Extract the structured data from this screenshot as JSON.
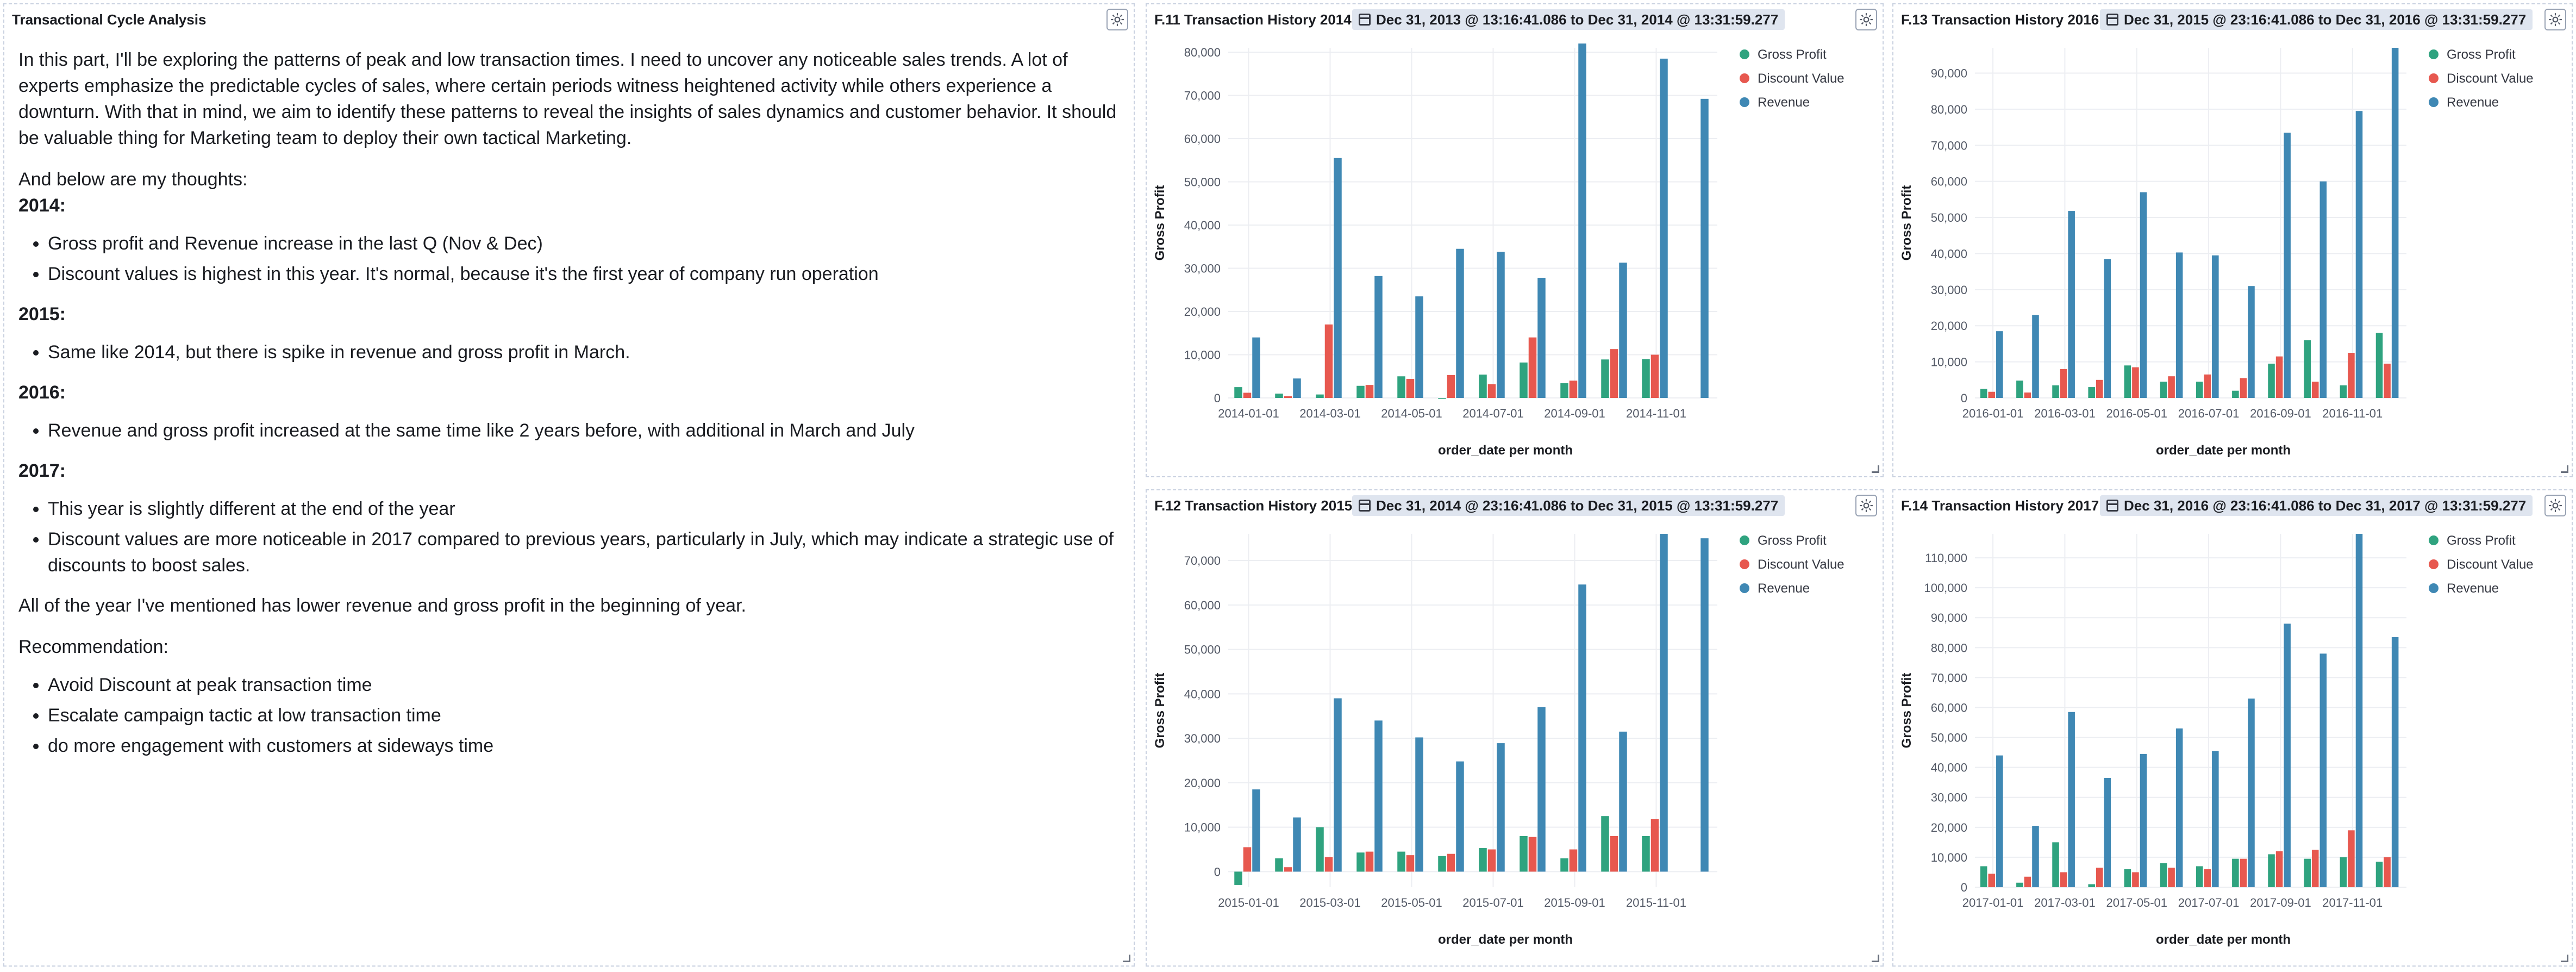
{
  "text_panel": {
    "title": "Transactional Cycle Analysis",
    "intro": "In this part, I'll be exploring the patterns of peak and low transaction times. I need to uncover any noticeable sales trends. A lot of experts emphasize the predictable cycles of sales, where certain periods witness heightened activity while others experience a downturn. With that in mind, we aim to identify these patterns to reveal the insights of sales dynamics and customer behavior. It should be valuable thing for Marketing team to deploy their own tactical Marketing.",
    "thoughts_label": "And below are my thoughts:",
    "sections": [
      {
        "heading": "2014:",
        "bullets": [
          "Gross profit and Revenue increase in the last Q (Nov & Dec)",
          "Discount values is highest in this year. It's normal, because it's the first year of company run operation"
        ]
      },
      {
        "heading": "2015:",
        "bullets": [
          "Same like 2014, but there is spike in revenue and gross profit in March."
        ]
      },
      {
        "heading": "2016:",
        "bullets": [
          "Revenue and gross profit increased at the same time like 2 years before, with additional in March and July"
        ]
      },
      {
        "heading": "2017:",
        "bullets": [
          "This year is slightly different at the end of the year",
          "Discount values are more noticeable in 2017 compared to previous years, particularly in July, which may indicate a strategic use of discounts to boost sales."
        ]
      }
    ],
    "closing": "All of the year I've mentioned has lower revenue and gross profit in the beginning of year.",
    "recommendation_label": "Recommendation:",
    "recommendations": [
      "Avoid Discount at peak transaction time",
      "Escalate campaign tactic at low transaction time",
      "do more engagement with customers at sideways time"
    ]
  },
  "legend": {
    "gross_profit": "Gross Profit",
    "discount_value": "Discount Value",
    "revenue": "Revenue"
  },
  "colors": {
    "gross_profit": "#2fa37f",
    "discount_value": "#e7584f",
    "revenue": "#3f88b4",
    "grid": "#eceef2",
    "axis_text": "#535966"
  },
  "chart_data": [
    {
      "id": "f11",
      "type": "bar",
      "title": "F.11 Transaction History 2014",
      "time_range": "Dec 31, 2013 @ 13:16:41.086 to Dec 31, 2014 @ 13:31:59.277",
      "xlabel": "order_date per month",
      "ylabel": "Gross Profit",
      "ylim": [
        0,
        81000
      ],
      "yticks": [
        0,
        10000,
        20000,
        30000,
        40000,
        50000,
        60000,
        70000,
        80000
      ],
      "categories": [
        "2014-01",
        "2014-02",
        "2014-03",
        "2014-04",
        "2014-05",
        "2014-06",
        "2014-07",
        "2014-08",
        "2014-09",
        "2014-10",
        "2014-11",
        "2014-12"
      ],
      "xtick_labels": [
        "2014-01-01",
        "2014-03-01",
        "2014-05-01",
        "2014-07-01",
        "2014-09-01",
        "2014-11-01"
      ],
      "series": [
        {
          "name": "Gross Profit",
          "values": [
            2500,
            1000,
            800,
            2800,
            5000,
            -200,
            5400,
            8200,
            3400,
            8900,
            9000,
            0
          ]
        },
        {
          "name": "Discount Value",
          "values": [
            1200,
            400,
            17000,
            3000,
            4400,
            5300,
            3200,
            14000,
            4000,
            11300,
            10000,
            0
          ]
        },
        {
          "name": "Revenue",
          "values": [
            14000,
            4500,
            55500,
            28200,
            23500,
            34500,
            33800,
            27800,
            82000,
            31300,
            78500,
            69200
          ]
        }
      ]
    },
    {
      "id": "f13",
      "type": "bar",
      "title": "F.13 Transaction History 2016",
      "time_range": "Dec 31, 2015 @ 23:16:41.086 to Dec 31, 2016 @ 13:31:59.277",
      "xlabel": "order_date per month",
      "ylabel": "Gross Profit",
      "ylim": [
        0,
        97000
      ],
      "yticks": [
        0,
        10000,
        20000,
        30000,
        40000,
        50000,
        60000,
        70000,
        80000,
        90000
      ],
      "categories": [
        "2016-01",
        "2016-02",
        "2016-03",
        "2016-04",
        "2016-05",
        "2016-06",
        "2016-07",
        "2016-08",
        "2016-09",
        "2016-10",
        "2016-11",
        "2016-12"
      ],
      "xtick_labels": [
        "2016-01-01",
        "2016-03-01",
        "2016-05-01",
        "2016-07-01",
        "2016-09-01",
        "2016-11-01"
      ],
      "series": [
        {
          "name": "Gross Profit",
          "values": [
            2500,
            4800,
            3500,
            3000,
            9000,
            4500,
            4500,
            2000,
            9500,
            16000,
            3500,
            18000
          ]
        },
        {
          "name": "Discount Value",
          "values": [
            1700,
            1500,
            8000,
            5000,
            8500,
            6000,
            6500,
            5500,
            11500,
            4500,
            12500,
            9500
          ]
        },
        {
          "name": "Revenue",
          "values": [
            18500,
            23000,
            51800,
            38500,
            57000,
            40300,
            39500,
            31000,
            73500,
            60000,
            79500,
            97000
          ]
        }
      ]
    },
    {
      "id": "f12",
      "type": "bar",
      "title": "F.12 Transaction History 2015",
      "time_range": "Dec 31, 2014 @ 23:16:41.086 to Dec 31, 2015 @ 13:31:59.277",
      "xlabel": "order_date per month",
      "ylabel": "Gross Profit",
      "ylim": [
        -3500,
        76000
      ],
      "yticks": [
        0,
        10000,
        20000,
        30000,
        40000,
        50000,
        60000,
        70000
      ],
      "categories": [
        "2015-01",
        "2015-02",
        "2015-03",
        "2015-04",
        "2015-05",
        "2015-06",
        "2015-07",
        "2015-08",
        "2015-09",
        "2015-10",
        "2015-11",
        "2015-12"
      ],
      "xtick_labels": [
        "2015-01-01",
        "2015-03-01",
        "2015-05-01",
        "2015-07-01",
        "2015-09-01",
        "2015-11-01"
      ],
      "series": [
        {
          "name": "Gross Profit",
          "values": [
            -3000,
            3000,
            10000,
            4300,
            4500,
            3500,
            5300,
            8000,
            3000,
            12500,
            8000,
            0
          ]
        },
        {
          "name": "Discount Value",
          "values": [
            5500,
            1000,
            3300,
            4500,
            3700,
            4000,
            5000,
            7800,
            5000,
            8000,
            11800,
            0
          ]
        },
        {
          "name": "Revenue",
          "values": [
            18500,
            12200,
            39000,
            34000,
            30200,
            24800,
            28900,
            37000,
            64600,
            31500,
            76000,
            75000
          ]
        }
      ]
    },
    {
      "id": "f14",
      "type": "bar",
      "title": "F.14 Transaction History 2017",
      "time_range": "Dec 31, 2016 @ 23:16:41.086 to Dec 31, 2017 @ 13:31:59.277",
      "xlabel": "order_date per month",
      "ylabel": "Gross Profit",
      "ylim": [
        0,
        118000
      ],
      "yticks": [
        0,
        10000,
        20000,
        30000,
        40000,
        50000,
        60000,
        70000,
        80000,
        90000,
        100000,
        110000
      ],
      "categories": [
        "2017-01",
        "2017-02",
        "2017-03",
        "2017-04",
        "2017-05",
        "2017-06",
        "2017-07",
        "2017-08",
        "2017-09",
        "2017-10",
        "2017-11",
        "2017-12"
      ],
      "xtick_labels": [
        "2017-01-01",
        "2017-03-01",
        "2017-05-01",
        "2017-07-01",
        "2017-09-01",
        "2017-11-01"
      ],
      "series": [
        {
          "name": "Gross Profit",
          "values": [
            7000,
            1500,
            15000,
            1000,
            6000,
            8000,
            7000,
            9500,
            11000,
            9500,
            10000,
            8500
          ]
        },
        {
          "name": "Discount Value",
          "values": [
            4500,
            3500,
            5000,
            6500,
            5000,
            6500,
            6000,
            9500,
            12000,
            12500,
            19000,
            10000
          ]
        },
        {
          "name": "Revenue",
          "values": [
            44000,
            20500,
            58500,
            36500,
            44500,
            53000,
            45500,
            63000,
            88000,
            78000,
            118000,
            83500
          ]
        }
      ]
    }
  ]
}
